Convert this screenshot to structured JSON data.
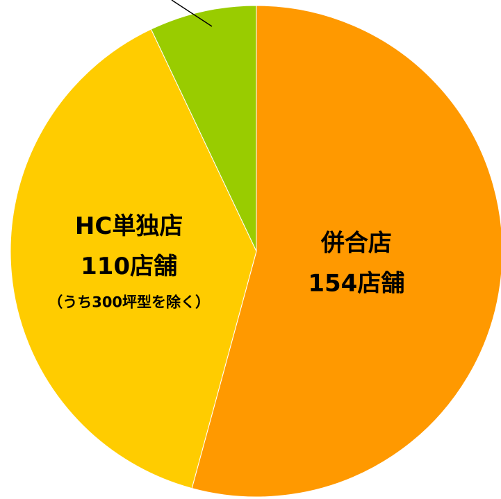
{
  "chart_data": {
    "type": "pie",
    "categories": [
      "併合店",
      "HC単独店",
      null
    ],
    "values": [
      154,
      110,
      20
    ],
    "value_labels": [
      "154店舗",
      "110店舗",
      null
    ],
    "notes": [
      null,
      "（うち300坪型を除く）",
      null
    ],
    "colors": [
      "#FF9900",
      "#FFCC00",
      "#99CC00"
    ]
  }
}
